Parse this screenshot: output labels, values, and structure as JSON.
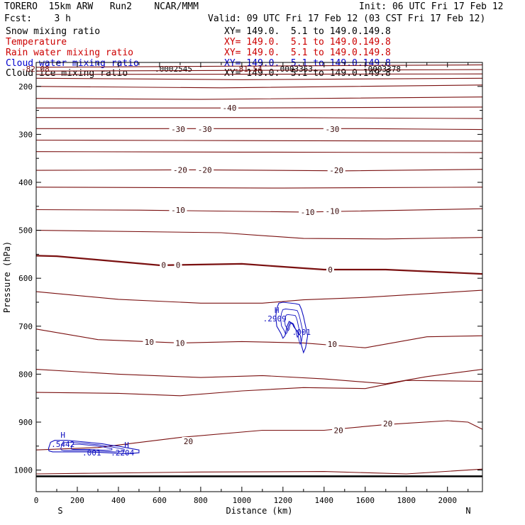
{
  "header": {
    "title_left": "TORERO  15km ARW   Run2    NCAR/MMM",
    "init": "Init: 06 UTC Fri 17 Feb 12",
    "fcst": "Fcst:    3 h",
    "valid": "Valid: 09 UTC Fri 17 Feb 12 (03 CST Fri 17 Feb 12)"
  },
  "fields": [
    {
      "name": "Snow mixing ratio",
      "xy": "",
      "color": "#000000"
    },
    {
      "name": "Temperature",
      "xy": "XY= 149.0.  5.1 to 149.0.149.8",
      "color": "#cc0000"
    },
    {
      "name": "Rain water mixing ratio",
      "xy": "XY= 149.0.  5.1 to 149.0.149.8",
      "color": "#cc0000"
    },
    {
      "name": "Cloud water mixing ratio",
      "xy": "XY= 149.0.  5.1 to 149.0.149.8",
      "color": "#0000cc"
    },
    {
      "name": "Cloud ice mixing ratio",
      "xy": "XY= 149.0.  5.1 to 149.0.149.8",
      "color": "#000000"
    }
  ],
  "xy_line1": "XY= 149.0.  5.1 to 149.0.149.8",
  "overlap_texts": [
    "-82.08",
    ".0002545",
    "-81.54",
    ".0003353",
    ".0003378"
  ],
  "chart_data": {
    "type": "cross-section contour",
    "xlabel": "Distance (km)",
    "ylabel": "Pressure (hPa)",
    "xlim": [
      0,
      2170
    ],
    "ylim": [
      150,
      1045
    ],
    "x_ticks": [
      0,
      200,
      400,
      600,
      800,
      1000,
      1200,
      1400,
      1600,
      1800,
      2000
    ],
    "y_ticks": [
      200,
      300,
      400,
      500,
      600,
      700,
      800,
      900,
      1000
    ],
    "x_end_left": "S",
    "x_end_right": "N",
    "colors": {
      "temperature": "#7a1010",
      "zero_isotherm": "#7a1010",
      "cloud_water": "#1010c0",
      "ground": "#000000"
    },
    "isotherms": [
      {
        "value": -70,
        "points": [
          [
            0,
            160
          ],
          [
            2170,
            155
          ]
        ]
      },
      {
        "value": -65,
        "points": [
          [
            0,
            168
          ],
          [
            2170,
            165
          ]
        ]
      },
      {
        "value": -60,
        "points": [
          [
            0,
            175
          ],
          [
            2170,
            174
          ]
        ]
      },
      {
        "value": -55,
        "points": [
          [
            0,
            183
          ],
          [
            1000,
            186
          ],
          [
            2170,
            183
          ]
        ]
      },
      {
        "value": -50,
        "points": [
          [
            0,
            200
          ],
          [
            900,
            203
          ],
          [
            2170,
            197
          ]
        ]
      },
      {
        "value": -45,
        "points": [
          [
            0,
            225
          ],
          [
            800,
            227
          ],
          [
            2170,
            222
          ]
        ]
      },
      {
        "value": -40,
        "points": [
          [
            0,
            245
          ],
          [
            800,
            245
          ],
          [
            1000,
            245
          ],
          [
            2170,
            243
          ]
        ]
      },
      {
        "value": -35,
        "points": [
          [
            0,
            265
          ],
          [
            1200,
            265
          ],
          [
            2170,
            267
          ]
        ]
      },
      {
        "value": -30,
        "points": [
          [
            0,
            288
          ],
          [
            1600,
            288
          ],
          [
            2170,
            290
          ]
        ]
      },
      {
        "value": -28,
        "points": [
          [
            0,
            312
          ],
          [
            1000,
            313
          ],
          [
            2170,
            314
          ]
        ]
      },
      {
        "value": -25,
        "points": [
          [
            0,
            336
          ],
          [
            1000,
            337
          ],
          [
            2170,
            338
          ]
        ]
      },
      {
        "value": -20,
        "points": [
          [
            0,
            375
          ],
          [
            800,
            374
          ],
          [
            1500,
            376
          ],
          [
            2170,
            373
          ]
        ]
      },
      {
        "value": -15,
        "points": [
          [
            0,
            410
          ],
          [
            1200,
            412
          ],
          [
            2170,
            410
          ]
        ]
      },
      {
        "value": -10,
        "points": [
          [
            0,
            457
          ],
          [
            500,
            458
          ],
          [
            1300,
            462
          ],
          [
            2170,
            455
          ]
        ]
      },
      {
        "value": -5,
        "points": [
          [
            0,
            500
          ],
          [
            900,
            505
          ],
          [
            1300,
            517
          ],
          [
            1700,
            518
          ],
          [
            2170,
            515
          ]
        ]
      },
      {
        "value": 0,
        "bold": true,
        "points": [
          [
            0,
            553
          ],
          [
            100,
            554
          ],
          [
            600,
            573
          ],
          [
            1000,
            570
          ],
          [
            1200,
            576
          ],
          [
            1400,
            582
          ],
          [
            1700,
            582
          ],
          [
            2170,
            591
          ]
        ]
      },
      {
        "value": 5,
        "points": [
          [
            0,
            628
          ],
          [
            400,
            644
          ],
          [
            800,
            652
          ],
          [
            1100,
            652
          ],
          [
            1300,
            645
          ],
          [
            1600,
            640
          ],
          [
            2170,
            625
          ]
        ]
      },
      {
        "value": 10,
        "points": [
          [
            0,
            706
          ],
          [
            300,
            728
          ],
          [
            700,
            735
          ],
          [
            1000,
            732
          ],
          [
            1300,
            735
          ],
          [
            1600,
            745
          ],
          [
            1900,
            722
          ],
          [
            2170,
            720
          ]
        ]
      },
      {
        "value": 15,
        "points": [
          [
            0,
            790
          ],
          [
            400,
            800
          ],
          [
            800,
            807
          ],
          [
            1100,
            803
          ],
          [
            1400,
            810
          ],
          [
            1700,
            820
          ],
          [
            1900,
            805
          ],
          [
            2170,
            790
          ]
        ]
      },
      {
        "value": 18,
        "points": [
          [
            0,
            838
          ],
          [
            400,
            840
          ],
          [
            700,
            845
          ],
          [
            1000,
            835
          ],
          [
            1300,
            828
          ],
          [
            1600,
            830
          ],
          [
            1800,
            813
          ],
          [
            2170,
            815
          ]
        ]
      },
      {
        "value": 20,
        "points": [
          [
            0,
            958
          ],
          [
            300,
            953
          ],
          [
            700,
            932
          ],
          [
            1100,
            917
          ],
          [
            1400,
            917
          ],
          [
            1700,
            905
          ],
          [
            2000,
            897
          ],
          [
            2100,
            900
          ],
          [
            2170,
            915
          ]
        ]
      },
      {
        "value": 25,
        "points": [
          [
            0,
            1008
          ],
          [
            800,
            1004
          ],
          [
            1400,
            1003
          ],
          [
            1800,
            1008
          ],
          [
            2170,
            998
          ]
        ]
      }
    ],
    "isotherm_labels": [
      {
        "text": "-40",
        "x": 940,
        "y": 245
      },
      {
        "text": "-30",
        "x": 690,
        "y": 289
      },
      {
        "text": "-30",
        "x": 820,
        "y": 289
      },
      {
        "text": "-30",
        "x": 1440,
        "y": 289
      },
      {
        "text": "-20",
        "x": 700,
        "y": 374
      },
      {
        "text": "-20",
        "x": 820,
        "y": 374
      },
      {
        "text": "-20",
        "x": 1460,
        "y": 375
      },
      {
        "text": "-10",
        "x": 690,
        "y": 458
      },
      {
        "text": "-10",
        "x": 1320,
        "y": 462
      },
      {
        "text": "-10",
        "x": 1440,
        "y": 460
      },
      {
        "text": "0",
        "x": 620,
        "y": 572
      },
      {
        "text": "0",
        "x": 690,
        "y": 572
      },
      {
        "text": "0",
        "x": 1430,
        "y": 582
      },
      {
        "text": "10",
        "x": 550,
        "y": 733
      },
      {
        "text": "10",
        "x": 700,
        "y": 735
      },
      {
        "text": "10",
        "x": 1440,
        "y": 737
      },
      {
        "text": "20",
        "x": 740,
        "y": 940
      },
      {
        "text": "20",
        "x": 1470,
        "y": 917
      },
      {
        "text": "20",
        "x": 1710,
        "y": 903
      }
    ],
    "cloud_water": {
      "max_label": "H",
      "max_values": [
        ".2909",
        ".5442",
        ".2204"
      ],
      "contour_label": ".001",
      "regions": [
        {
          "points": [
            [
              1170,
              663
            ],
            [
              1180,
              652
            ],
            [
              1200,
              650
            ],
            [
              1260,
              653
            ],
            [
              1280,
              655
            ],
            [
              1290,
              665
            ],
            [
              1300,
              680
            ],
            [
              1310,
              700
            ],
            [
              1320,
              720
            ],
            [
              1310,
              745
            ],
            [
              1300,
              755
            ],
            [
              1290,
              740
            ],
            [
              1285,
              720
            ],
            [
              1260,
              705
            ],
            [
              1250,
              695
            ],
            [
              1230,
              690
            ],
            [
              1220,
              700
            ],
            [
              1210,
              720
            ],
            [
              1200,
              725
            ],
            [
              1190,
              715
            ],
            [
              1170,
              700
            ],
            [
              1165,
              680
            ]
          ]
        },
        {
          "points": [
            [
              60,
              955
            ],
            [
              70,
              942
            ],
            [
              90,
              938
            ],
            [
              150,
              938
            ],
            [
              200,
              940
            ],
            [
              250,
              942
            ],
            [
              320,
              945
            ],
            [
              360,
              948
            ],
            [
              400,
              950
            ],
            [
              460,
              955
            ],
            [
              500,
              958
            ],
            [
              500,
              964
            ],
            [
              440,
              966
            ],
            [
              350,
              964
            ],
            [
              250,
              962
            ],
            [
              150,
              962
            ],
            [
              80,
              962
            ],
            [
              62,
              960
            ]
          ]
        }
      ],
      "labels": [
        {
          "text": "H",
          "x": 1170,
          "y": 666,
          "kind": "max"
        },
        {
          "text": ".2909",
          "x": 1160,
          "y": 684,
          "kind": "value"
        },
        {
          "text": ".001",
          "x": 1290,
          "y": 712,
          "kind": "contour"
        },
        {
          "text": "H",
          "x": 130,
          "y": 927,
          "kind": "max"
        },
        {
          "text": ".5442",
          "x": 130,
          "y": 946,
          "kind": "value"
        },
        {
          "text": ".001",
          "x": 270,
          "y": 964,
          "kind": "contour"
        },
        {
          "text": "H",
          "x": 440,
          "y": 947,
          "kind": "max"
        },
        {
          "text": ".2204",
          "x": 420,
          "y": 964,
          "kind": "value"
        }
      ]
    },
    "surface_pressure": [
      [
        0,
        1013
      ],
      [
        1000,
        1013
      ],
      [
        1800,
        1013
      ],
      [
        2170,
        1013
      ]
    ]
  }
}
